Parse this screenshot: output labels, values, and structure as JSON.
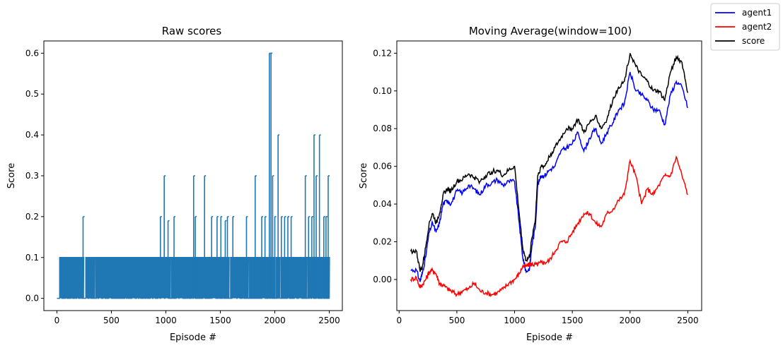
{
  "chart_data": [
    {
      "type": "line",
      "title": "Raw scores",
      "xlabel": "Episode #",
      "ylabel": "Score",
      "xlim": [
        -120,
        2620
      ],
      "ylim": [
        -0.03,
        0.63
      ],
      "xticks": [
        0,
        500,
        1000,
        1500,
        2000,
        2500
      ],
      "xtick_labels": [
        "0",
        "500",
        "1000",
        "1500",
        "2000",
        "2500"
      ],
      "yticks": [
        0.0,
        0.1,
        0.2,
        0.3,
        0.4,
        0.5,
        0.6
      ],
      "ytick_labels": [
        "0.0",
        "0.1",
        "0.2",
        "0.3",
        "0.4",
        "0.5",
        "0.6"
      ],
      "grid": false,
      "series": [
        {
          "color": "#1f77b4",
          "description_of_values": "episode scores alternate mostly between 0.0 and 0.1 after episode 25; occasional spikes listed below",
          "baseline": 0.0,
          "common_high": 0.1,
          "dense_start": 25,
          "dense_end": 2500,
          "spikes": [
            {
              "x": 240,
              "y": 0.2
            },
            {
              "x": 950,
              "y": 0.2
            },
            {
              "x": 985,
              "y": 0.3
            },
            {
              "x": 1020,
              "y": 0.19
            },
            {
              "x": 1075,
              "y": 0.2
            },
            {
              "x": 1255,
              "y": 0.3
            },
            {
              "x": 1270,
              "y": 0.2
            },
            {
              "x": 1355,
              "y": 0.3
            },
            {
              "x": 1420,
              "y": 0.2
            },
            {
              "x": 1470,
              "y": 0.2
            },
            {
              "x": 1505,
              "y": 0.2
            },
            {
              "x": 1545,
              "y": 0.19
            },
            {
              "x": 1565,
              "y": 0.2
            },
            {
              "x": 1615,
              "y": 0.2
            },
            {
              "x": 1740,
              "y": 0.2
            },
            {
              "x": 1820,
              "y": 0.3
            },
            {
              "x": 1880,
              "y": 0.2
            },
            {
              "x": 1910,
              "y": 0.2
            },
            {
              "x": 1950,
              "y": 0.6
            },
            {
              "x": 1965,
              "y": 0.6
            },
            {
              "x": 1980,
              "y": 0.3
            },
            {
              "x": 2000,
              "y": 0.2
            },
            {
              "x": 2030,
              "y": 0.4
            },
            {
              "x": 2060,
              "y": 0.2
            },
            {
              "x": 2090,
              "y": 0.2
            },
            {
              "x": 2120,
              "y": 0.2
            },
            {
              "x": 2150,
              "y": 0.2
            },
            {
              "x": 2280,
              "y": 0.3
            },
            {
              "x": 2310,
              "y": 0.2
            },
            {
              "x": 2340,
              "y": 0.2
            },
            {
              "x": 2360,
              "y": 0.4
            },
            {
              "x": 2380,
              "y": 0.3
            },
            {
              "x": 2410,
              "y": 0.4
            },
            {
              "x": 2450,
              "y": 0.2
            },
            {
              "x": 2470,
              "y": 0.2
            },
            {
              "x": 2490,
              "y": 0.3
            }
          ]
        }
      ]
    },
    {
      "type": "line",
      "title": "Moving Average(window=100)",
      "xlabel": "Episode #",
      "ylabel": "Score",
      "xlim": [
        -20,
        2620
      ],
      "ylim": [
        -0.0165,
        0.1265
      ],
      "xticks": [
        0,
        500,
        1000,
        1500,
        2000,
        2500
      ],
      "xtick_labels": [
        "0",
        "500",
        "1000",
        "1500",
        "2000",
        "2500"
      ],
      "yticks": [
        0.0,
        0.02,
        0.04,
        0.06,
        0.08,
        0.1,
        0.12
      ],
      "ytick_labels": [
        "0.00",
        "0.02",
        "0.04",
        "0.06",
        "0.08",
        "0.10",
        "0.12"
      ],
      "grid": false,
      "legend_position": "figure top-right",
      "series": [
        {
          "name": "agent1",
          "color": "#0000ff",
          "x": [
            100,
            150,
            180,
            200,
            230,
            260,
            290,
            320,
            350,
            380,
            420,
            450,
            500,
            550,
            600,
            650,
            700,
            750,
            800,
            850,
            900,
            950,
            1000,
            1040,
            1070,
            1100,
            1130,
            1150,
            1180,
            1200,
            1230,
            1260,
            1300,
            1350,
            1400,
            1450,
            1500,
            1550,
            1600,
            1650,
            1700,
            1750,
            1800,
            1850,
            1900,
            1950,
            2000,
            2050,
            2100,
            2150,
            2200,
            2250,
            2300,
            2350,
            2400,
            2450,
            2500
          ],
          "y": [
            0.005,
            0.005,
            -0.001,
            0.003,
            0.012,
            0.025,
            0.03,
            0.025,
            0.03,
            0.04,
            0.042,
            0.04,
            0.047,
            0.046,
            0.05,
            0.048,
            0.045,
            0.05,
            0.051,
            0.053,
            0.05,
            0.052,
            0.052,
            0.03,
            0.012,
            0.004,
            0.006,
            0.018,
            0.028,
            0.05,
            0.055,
            0.055,
            0.058,
            0.06,
            0.068,
            0.07,
            0.072,
            0.078,
            0.068,
            0.075,
            0.08,
            0.072,
            0.078,
            0.083,
            0.09,
            0.093,
            0.11,
            0.1,
            0.098,
            0.095,
            0.09,
            0.09,
            0.082,
            0.098,
            0.105,
            0.102,
            0.091
          ]
        },
        {
          "name": "agent2",
          "color": "#ff0000",
          "x": [
            100,
            150,
            180,
            200,
            230,
            260,
            290,
            320,
            350,
            380,
            420,
            450,
            500,
            550,
            600,
            650,
            700,
            750,
            800,
            850,
            900,
            950,
            1000,
            1040,
            1070,
            1100,
            1130,
            1150,
            1180,
            1200,
            1230,
            1260,
            1300,
            1350,
            1400,
            1450,
            1500,
            1550,
            1600,
            1650,
            1700,
            1750,
            1800,
            1850,
            1900,
            1950,
            2000,
            2050,
            2100,
            2150,
            2200,
            2250,
            2300,
            2350,
            2400,
            2450,
            2500
          ],
          "y": [
            0.0,
            0.001,
            -0.004,
            -0.003,
            0.0,
            0.004,
            0.005,
            0.003,
            -0.002,
            -0.003,
            -0.005,
            -0.006,
            -0.008,
            -0.006,
            -0.005,
            -0.002,
            -0.006,
            -0.007,
            -0.008,
            -0.007,
            -0.005,
            -0.002,
            0.0,
            0.003,
            0.007,
            0.007,
            0.008,
            0.008,
            0.008,
            0.008,
            0.009,
            0.009,
            0.01,
            0.015,
            0.02,
            0.02,
            0.025,
            0.03,
            0.035,
            0.035,
            0.03,
            0.028,
            0.035,
            0.037,
            0.042,
            0.045,
            0.063,
            0.055,
            0.04,
            0.048,
            0.045,
            0.05,
            0.055,
            0.055,
            0.065,
            0.055,
            0.045
          ]
        },
        {
          "name": "score",
          "color": "#000000",
          "x": [
            100,
            150,
            180,
            200,
            230,
            260,
            290,
            320,
            350,
            380,
            420,
            450,
            500,
            550,
            600,
            650,
            700,
            750,
            800,
            850,
            900,
            950,
            1000,
            1040,
            1070,
            1100,
            1130,
            1150,
            1180,
            1200,
            1230,
            1260,
            1300,
            1350,
            1400,
            1450,
            1500,
            1550,
            1600,
            1650,
            1700,
            1750,
            1800,
            1850,
            1900,
            1950,
            2000,
            2050,
            2100,
            2150,
            2200,
            2250,
            2300,
            2350,
            2400,
            2450,
            2500
          ],
          "y": [
            0.015,
            0.015,
            0.005,
            0.006,
            0.017,
            0.03,
            0.035,
            0.03,
            0.035,
            0.045,
            0.048,
            0.047,
            0.052,
            0.053,
            0.056,
            0.054,
            0.052,
            0.055,
            0.057,
            0.058,
            0.055,
            0.058,
            0.06,
            0.035,
            0.017,
            0.01,
            0.012,
            0.022,
            0.032,
            0.055,
            0.06,
            0.06,
            0.065,
            0.07,
            0.075,
            0.08,
            0.08,
            0.085,
            0.078,
            0.083,
            0.087,
            0.08,
            0.085,
            0.095,
            0.102,
            0.105,
            0.12,
            0.113,
            0.108,
            0.105,
            0.1,
            0.1,
            0.095,
            0.11,
            0.118,
            0.115,
            0.099
          ]
        }
      ]
    }
  ],
  "legend": {
    "items": [
      {
        "label": "agent1",
        "color": "#0000ff"
      },
      {
        "label": "agent2",
        "color": "#ff0000"
      },
      {
        "label": "score",
        "color": "#000000"
      }
    ]
  }
}
